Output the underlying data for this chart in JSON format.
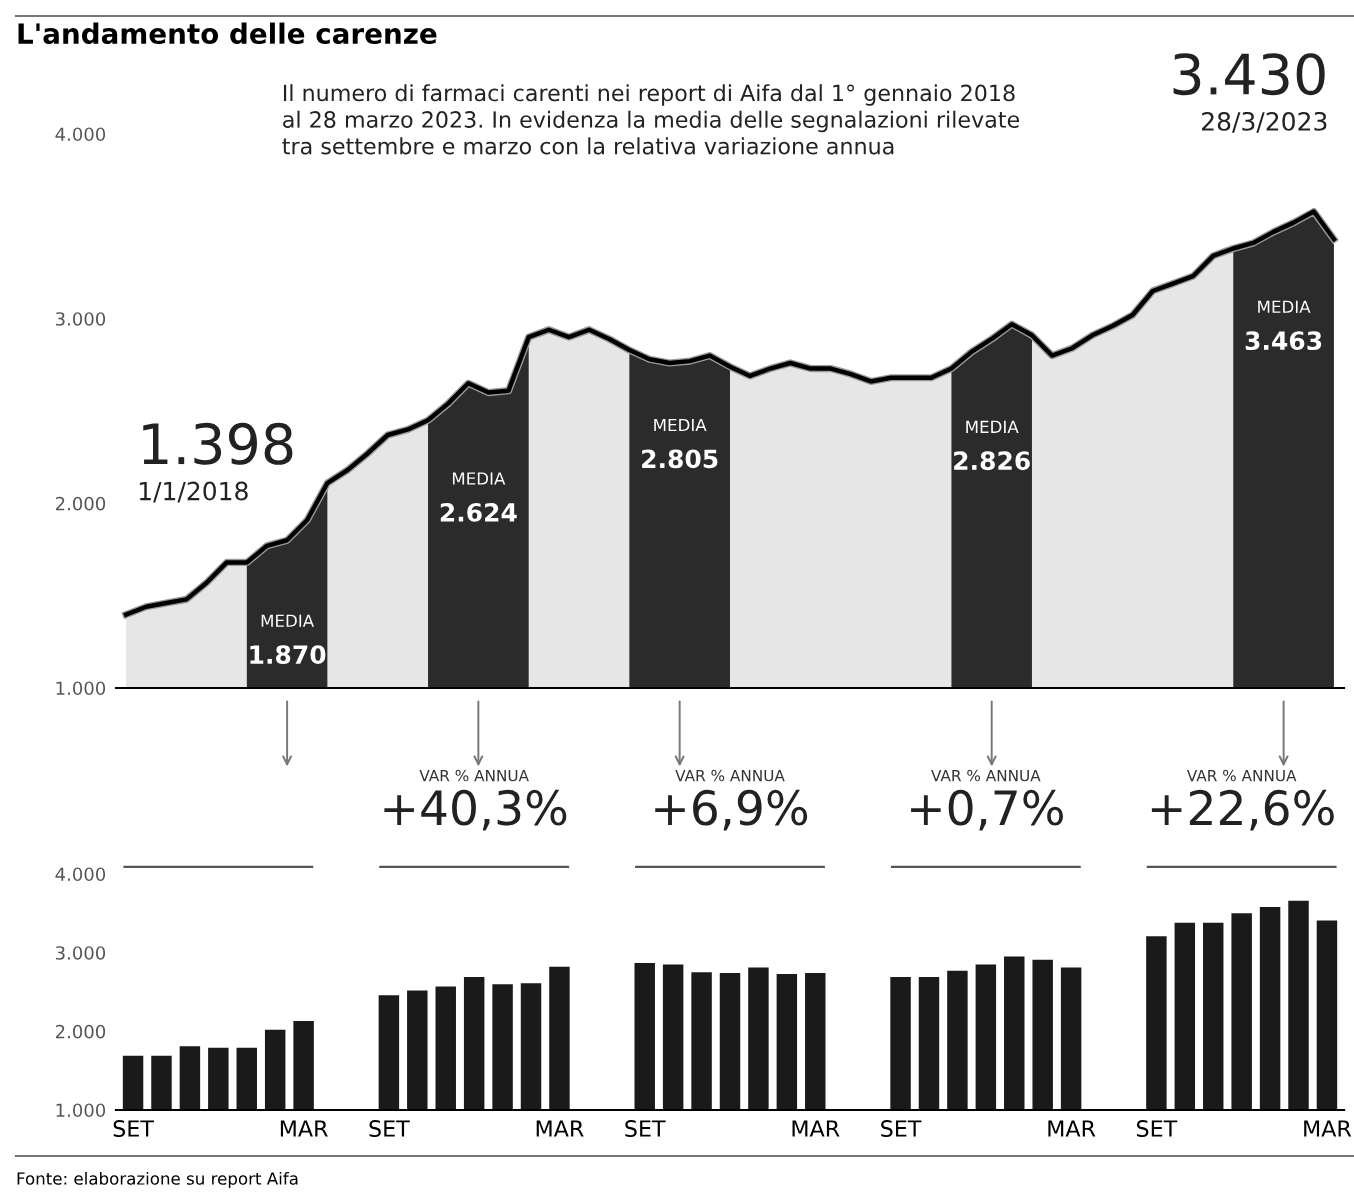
{
  "chart_data": [
    {
      "type": "area",
      "title": "L'andamento delle carenze",
      "subtitle": "Il numero di farmaci carenti nei report di Aifa dal 1° gennaio 2018\nal 28 marzo 2023. In evidenza la media delle segnalazioni rilevate\ntra settembre e marzo con la relativa variazione annua",
      "categories": [
        null,
        null,
        null,
        null,
        null,
        null,
        null,
        null,
        null,
        null,
        null,
        null,
        null,
        null,
        null,
        null,
        null,
        null,
        null,
        null,
        null,
        null,
        null,
        null,
        null,
        null,
        null,
        null,
        null,
        null,
        null,
        null,
        null,
        null,
        null,
        null,
        null,
        null,
        null,
        null,
        null,
        null,
        null,
        null,
        null,
        null,
        null,
        null,
        null,
        null,
        null,
        null,
        null,
        null,
        null,
        null,
        null,
        null,
        null,
        null,
        null
      ],
      "series": [
        {
          "type": "area",
          "color": "#2b2b2b",
          "values": [
            null,
            null,
            null,
            null,
            null,
            null,
            1680,
            1770,
            1800,
            1910,
            2110,
            null,
            null,
            null,
            null,
            2450,
            2540,
            2650,
            2600,
            2610,
            2900,
            null,
            null,
            null,
            null,
            2830,
            2780,
            2760,
            2770,
            2800,
            2740,
            null,
            null,
            null,
            null,
            null,
            null,
            null,
            null,
            null,
            null,
            2730,
            2820,
            2890,
            2970,
            2910,
            null,
            null,
            null,
            null,
            null,
            null,
            null,
            null,
            null,
            3380,
            3410,
            3470,
            3520,
            3580,
            3430
          ]
        },
        {
          "type": "line",
          "color": "#000000",
          "values": [
            1398,
            1440,
            1460,
            1480,
            1570,
            1680,
            1680,
            1770,
            1800,
            1910,
            2110,
            2180,
            2270,
            2370,
            2400,
            2450,
            2540,
            2650,
            2600,
            2610,
            2900,
            2940,
            2900,
            2940,
            2890,
            2830,
            2780,
            2760,
            2770,
            2800,
            2740,
            2690,
            2730,
            2760,
            2730,
            2730,
            2700,
            2660,
            2680,
            2680,
            2680,
            2730,
            2820,
            2890,
            2970,
            2910,
            2800,
            2840,
            2910,
            2960,
            3020,
            3150,
            3190,
            3230,
            3340,
            3380,
            3410,
            3470,
            3520,
            3580,
            3430
          ]
        }
      ],
      "ylim": [
        1000,
        4000
      ],
      "yticks": [
        {
          "value": 1000,
          "label": "1.000"
        },
        {
          "value": 2000,
          "label": "2.000"
        },
        {
          "value": 3000,
          "label": "3.000"
        },
        {
          "value": 4000,
          "label": "4.000"
        }
      ],
      "tick_labels": "y",
      "grid": false,
      "annotations": [
        "1.398\n1/1/2018",
        "3.430\n28/3/2023",
        "MEDIA\n1.870",
        "MEDIA\n2.624",
        "MEDIA\n2.805",
        "MEDIA\n2.826",
        "MEDIA\n3.463"
      ]
    },
    {
      "type": "bar",
      "color": "#1a1a1a",
      "categories": [
        "SET",
        null,
        null,
        null,
        null,
        null,
        "MAR",
        null,
        null,
        "SET",
        null,
        null,
        null,
        null,
        null,
        "MAR",
        null,
        null,
        "SET",
        null,
        null,
        null,
        null,
        null,
        "MAR",
        null,
        null,
        "SET",
        null,
        null,
        null,
        null,
        null,
        "MAR",
        null,
        null,
        "SET",
        null,
        null,
        null,
        null,
        null,
        "MAR"
      ],
      "values": [
        1690,
        1690,
        1810,
        1790,
        1790,
        2020,
        2130,
        null,
        null,
        2460,
        2520,
        2570,
        2690,
        2600,
        2610,
        2820,
        null,
        null,
        2870,
        2850,
        2750,
        2740,
        2810,
        2730,
        2740,
        null,
        null,
        2690,
        2690,
        2770,
        2850,
        2950,
        2910,
        2810,
        null,
        null,
        3210,
        3380,
        3380,
        3500,
        3580,
        3660,
        3410
      ],
      "ylim": [
        1000,
        4000
      ],
      "yticks": [
        {
          "value": 1000,
          "label": "1.000"
        },
        {
          "value": 2000,
          "label": "2.000"
        },
        {
          "value": 3000,
          "label": "3.000"
        },
        {
          "value": 4000,
          "label": "4.000"
        }
      ],
      "grid": false,
      "annotations": [
        "VAR % ANNUA\n+40,3%",
        "VAR % ANNUA\n+6,9%",
        "VAR % ANNUA\n+0,7%",
        "VAR % ANNUA\n+22,6%",
        "Fonte: elaborazione su report Aifa"
      ]
    }
  ]
}
